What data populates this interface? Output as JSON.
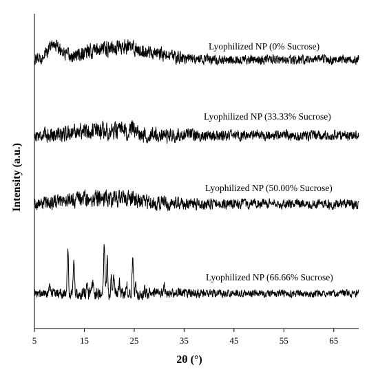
{
  "chart_data": {
    "type": "line",
    "title": "",
    "xlabel": "2θ (°)",
    "ylabel": "Intensity (a.u.)",
    "xlim": [
      5,
      70
    ],
    "xticks": [
      5,
      15,
      25,
      35,
      45,
      55,
      65
    ],
    "y_ticks_shown": false,
    "grid": false,
    "legend": "none",
    "series": [
      {
        "name": "Lyophilized NP (0% Sucrose)",
        "baseline": 0.75,
        "noise": 0.35,
        "peaks": [
          {
            "x": 9.0,
            "h": 1.6,
            "w": 1.3
          },
          {
            "x": 21.0,
            "h": 1.35,
            "w": 5.0
          },
          {
            "x": 29.0,
            "h": 0.4,
            "w": 4.0
          }
        ]
      },
      {
        "name": "Lyophilized NP (33.33% Sucrose)",
        "baseline": 0.0,
        "noise": 0.4,
        "peaks": [
          {
            "x": 19.5,
            "h": 0.5,
            "w": 4.0
          },
          {
            "x": 24.8,
            "h": 1.1,
            "w": 0.25
          },
          {
            "x": 13.0,
            "h": 0.25,
            "w": 3.0
          }
        ]
      },
      {
        "name": "Lyophilized NP (50.00% Sucrose)",
        "baseline": 0.0,
        "noise": 0.4,
        "peaks": [
          {
            "x": 20.0,
            "h": 0.75,
            "w": 5.5
          },
          {
            "x": 12.0,
            "h": 0.2,
            "w": 3.0
          }
        ]
      },
      {
        "name": "Lyophilized NP (66.66% Sucrose)",
        "baseline": 0.0,
        "noise": 0.28,
        "peaks": [
          {
            "x": 8.1,
            "h": 1.0,
            "w": 0.12
          },
          {
            "x": 11.7,
            "h": 4.5,
            "w": 0.13
          },
          {
            "x": 12.9,
            "h": 3.3,
            "w": 0.13
          },
          {
            "x": 15.5,
            "h": 1.5,
            "w": 0.12
          },
          {
            "x": 16.7,
            "h": 1.0,
            "w": 0.12
          },
          {
            "x": 19.0,
            "h": 5.2,
            "w": 0.13
          },
          {
            "x": 19.6,
            "h": 4.0,
            "w": 0.12
          },
          {
            "x": 20.4,
            "h": 2.2,
            "w": 0.12
          },
          {
            "x": 20.9,
            "h": 1.5,
            "w": 0.12
          },
          {
            "x": 22.0,
            "h": 1.2,
            "w": 0.12
          },
          {
            "x": 23.5,
            "h": 0.9,
            "w": 0.12
          },
          {
            "x": 24.7,
            "h": 3.4,
            "w": 0.13
          },
          {
            "x": 25.3,
            "h": 1.1,
            "w": 0.12
          },
          {
            "x": 27.1,
            "h": 0.5,
            "w": 0.12
          },
          {
            "x": 31.0,
            "h": 0.9,
            "w": 0.12
          },
          {
            "x": 38.4,
            "h": 0.5,
            "w": 0.12
          }
        ]
      }
    ]
  }
}
